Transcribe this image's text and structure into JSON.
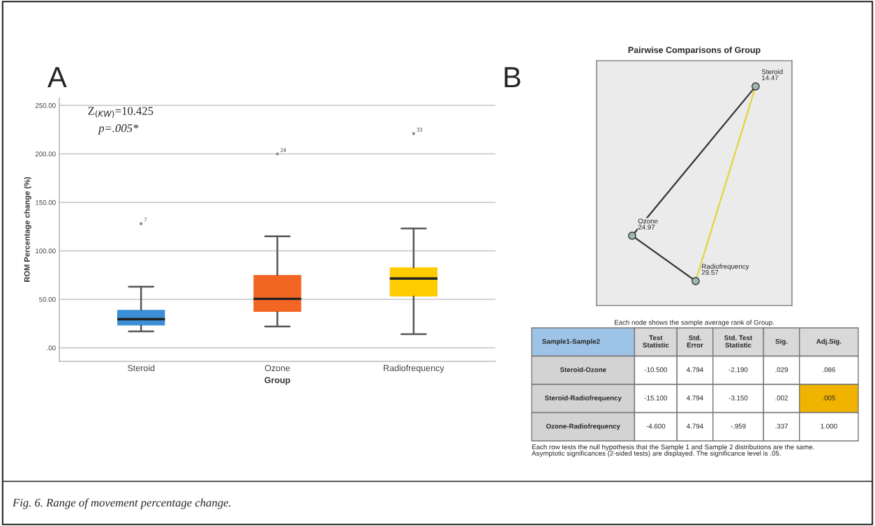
{
  "chart_data": [
    {
      "type": "box",
      "title": "A",
      "xlabel": "Group",
      "ylabel": "ROM Percentage change (%)",
      "categories": [
        "Steroid",
        "Ozone",
        "Radiofrequency"
      ],
      "colors": [
        "#3a8fd6",
        "#f26522",
        "#ffcc00"
      ],
      "boxes": [
        {
          "low": 17,
          "q1": 23,
          "median": 29.5,
          "q3": 39,
          "high": 63,
          "outliers": [
            128
          ]
        },
        {
          "low": 22,
          "q1": 37,
          "median": 50.5,
          "q3": 75,
          "high": 115,
          "outliers": [
            200
          ]
        },
        {
          "low": 14,
          "q1": 53,
          "median": 71.5,
          "q3": 83,
          "high": 123,
          "outliers": [
            221
          ]
        }
      ],
      "ylim": [
        -14,
        258
      ],
      "yticks": [
        {
          "value": 0,
          "label": ".00"
        },
        {
          "value": 50,
          "label": "50.00"
        },
        {
          "value": 100,
          "label": "100.00"
        },
        {
          "value": 150,
          "label": "150.00"
        },
        {
          "value": 200,
          "label": "200.00"
        },
        {
          "value": 250,
          "label": "250.00"
        }
      ],
      "grid": "y",
      "annotations": [
        "Z$_{(KW)}$=10.425",
        "p=.005*",
        "Fig. 6. Range of movement percentage change.",
        "7",
        "24",
        "33"
      ]
    },
    {
      "type": "other",
      "title": "B",
      "subtitle": "Pairwise Comparisons of Group",
      "categories": [
        "Steroid",
        "Ozone",
        "Radiofrequency"
      ],
      "values": [
        14.47,
        24.97,
        29.57
      ],
      "data_labels": true,
      "annotations": [
        "Each node shows the sample average rank of Group.",
        "Sample1-Sample2",
        "Test\nStatistic",
        "Std.\nError",
        "Std. Test\nStatistic",
        "Sig.",
        "Adj.Sig.",
        "Steroid-Ozone",
        "-10.500",
        "4.794",
        "-2.190",
        ".029",
        ".086",
        "Steroid-Radiofrequency",
        "-15.100",
        "4.794",
        "-3.150",
        ".002",
        ".005",
        "Ozone-Radiofrequency",
        "-4.600",
        "4.794",
        "-.959",
        ".337",
        "1.000",
        "Each row tests the null hypothesis that the Sample 1 and Sample 2 distributions are the same.\nAsymptotic significances (2-sided tests) are displayed. The significance level is .05."
      ]
    }
  ]
}
